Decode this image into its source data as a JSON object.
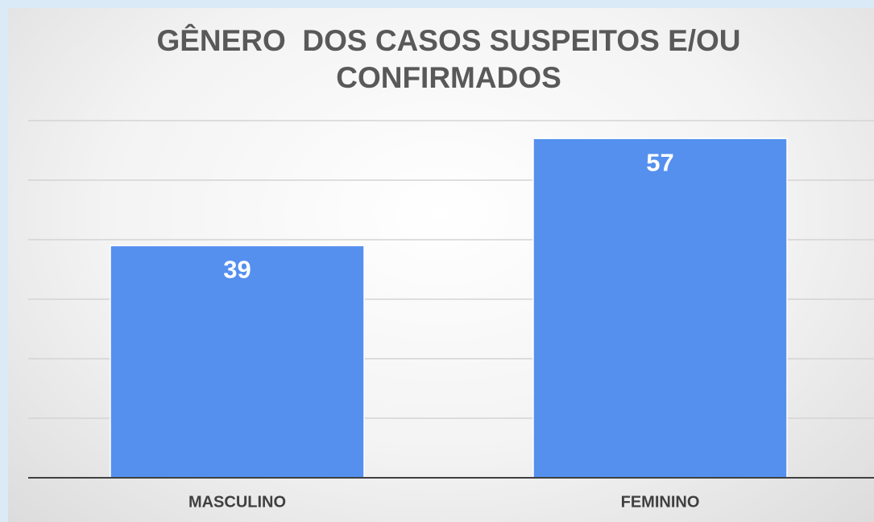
{
  "chart_data": {
    "type": "bar",
    "title": "GÊNERO  DOS CASOS SUSPEITOS E/OU CONFIRMADOS",
    "categories": [
      "MASCULINO",
      "FEMININO"
    ],
    "values": [
      39,
      57
    ],
    "color": "#5590ee",
    "ylim": [
      0,
      60
    ],
    "yticks": [
      0,
      10,
      20,
      30,
      40,
      50,
      60
    ],
    "grid": true
  }
}
